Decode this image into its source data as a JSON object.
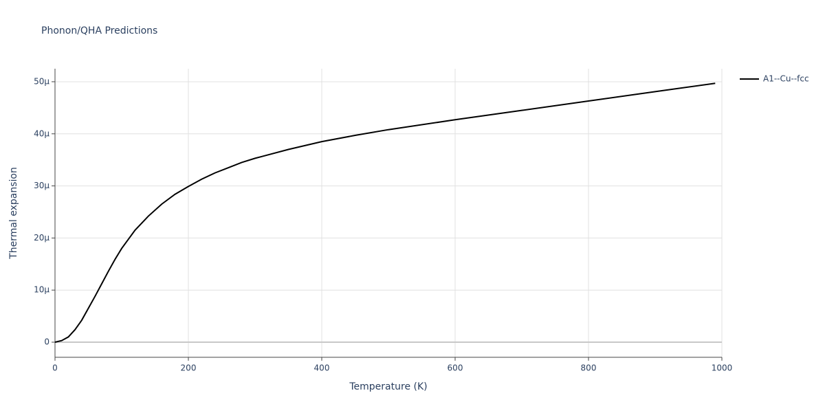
{
  "chart_data": {
    "type": "line",
    "title": "Phonon/QHA Predictions",
    "x_label": "Temperature (K)",
    "y_label": "Thermal expansion",
    "x": [
      0,
      10,
      20,
      30,
      40,
      50,
      60,
      70,
      80,
      90,
      100,
      120,
      140,
      160,
      180,
      200,
      220,
      240,
      260,
      280,
      300,
      350,
      400,
      450,
      500,
      600,
      700,
      800,
      900,
      990
    ],
    "series": [
      {
        "name": "A1--Cu--fcc",
        "color": "#000000",
        "values": [
          0,
          3e-07,
          1e-06,
          2.4e-06,
          4.2e-06,
          6.5e-06,
          8.8e-06,
          1.12e-05,
          1.36e-05,
          1.59e-05,
          1.8e-05,
          2.15e-05,
          2.42e-05,
          2.65e-05,
          2.84e-05,
          2.99e-05,
          3.13e-05,
          3.25e-05,
          3.35e-05,
          3.45e-05,
          3.53e-05,
          3.7e-05,
          3.85e-05,
          3.97e-05,
          4.08e-05,
          4.27e-05,
          4.45e-05,
          4.63e-05,
          4.81e-05,
          4.97e-05
        ]
      }
    ],
    "xlim": [
      0,
      1000
    ],
    "xticks": [
      0,
      200,
      400,
      600,
      800,
      1000
    ],
    "ylim": [
      -2.9e-06,
      5.25e-05
    ],
    "yticks": [
      0,
      {
        "value": 1e-05,
        "label": "10μ"
      },
      {
        "value": 2e-05,
        "label": "20μ"
      },
      {
        "value": 3e-05,
        "label": "30μ"
      },
      {
        "value": 4e-05,
        "label": "40μ"
      },
      {
        "value": 5e-05,
        "label": "50μ"
      }
    ],
    "grid": true,
    "legend": "top-right"
  }
}
